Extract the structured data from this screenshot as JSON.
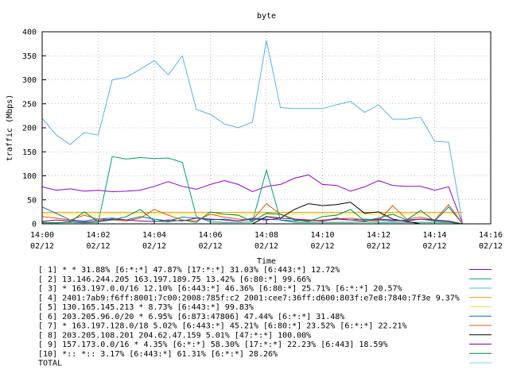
{
  "chart_data": {
    "type": "line",
    "title": "byte",
    "xlabel": "Time",
    "ylabel": "traffic (Mbps)",
    "ylim": [
      0,
      400
    ],
    "yticks": [
      0,
      50,
      100,
      150,
      200,
      250,
      300,
      350,
      400
    ],
    "xlim_minutes": [
      0,
      16
    ],
    "xticks": [
      {
        "time": "14:00",
        "date": "02/12"
      },
      {
        "time": "14:02",
        "date": "02/12"
      },
      {
        "time": "14:04",
        "date": "02/12"
      },
      {
        "time": "14:06",
        "date": "02/12"
      },
      {
        "time": "14:08",
        "date": "02/12"
      },
      {
        "time": "14:10",
        "date": "02/12"
      },
      {
        "time": "14:12",
        "date": "02/12"
      },
      {
        "time": "14:14",
        "date": "02/12"
      },
      {
        "time": "14:16",
        "date": "02/12"
      }
    ],
    "grid": true,
    "legend_position": "bottom",
    "series": [
      {
        "label": "[ 1] * * 31.88%  [6:*:*] 47.87% [17:*:*] 31.03% [6:443:*] 12.72%",
        "color": "#9400d3",
        "x": [
          0,
          0.5,
          1,
          1.5,
          2,
          2.5,
          3,
          3.5,
          4,
          4.5,
          5,
          5.5,
          6,
          6.5,
          7,
          7.5,
          8,
          8.5,
          9,
          9.5,
          10,
          10.5,
          11,
          11.5,
          12,
          12.5,
          13,
          13.5,
          14,
          14.5,
          15
        ],
        "values": [
          77,
          70,
          73,
          68,
          70,
          67,
          68,
          70,
          78,
          88,
          78,
          72,
          82,
          90,
          82,
          67,
          78,
          82,
          95,
          102,
          82,
          80,
          68,
          77,
          90,
          80,
          78,
          78,
          70,
          77,
          0
        ]
      },
      {
        "label": "[ 2] 13.146.244.205 163.197.189.75 13.42%  [6:80:*] 99.66%",
        "color": "#009e73",
        "x": [
          0,
          0.5,
          1,
          1.5,
          2,
          2.5,
          3,
          3.5,
          4,
          4.5,
          5,
          5.5,
          6,
          6.5,
          7,
          7.5,
          8,
          8.5,
          9,
          9.5,
          10,
          10.5,
          11,
          11.5,
          12,
          12.5,
          13,
          13.5,
          14,
          14.5,
          15
        ],
        "values": [
          2,
          2,
          3,
          2,
          3,
          140,
          135,
          138,
          136,
          137,
          128,
          15,
          4,
          3,
          3,
          4,
          112,
          8,
          3,
          3,
          3,
          3,
          3,
          4,
          3,
          3,
          3,
          3,
          3,
          3,
          0
        ]
      },
      {
        "label": "[ 3] * 163.197.0.0/16 12.10%  [6:443:*] 46.36% [6:80:*] 25.71% [6:*:*] 20.57%",
        "color": "#56b4e9",
        "x": [
          0,
          0.5,
          1,
          1.5,
          2,
          2.5,
          3,
          3.5,
          4,
          4.5,
          5,
          5.5,
          6,
          6.5,
          7,
          7.5,
          8,
          8.5,
          9,
          9.5,
          10,
          10.5,
          11,
          11.5,
          12,
          12.5,
          13,
          13.5,
          14,
          14.5,
          15
        ],
        "values": [
          220,
          185,
          165,
          190,
          185,
          300,
          305,
          322,
          340,
          310,
          350,
          238,
          228,
          208,
          200,
          212,
          382,
          242,
          240,
          240,
          240,
          248,
          255,
          232,
          248,
          218,
          218,
          222,
          172,
          170,
          0
        ]
      },
      {
        "label": "[ 4] 2401:7ab9:f6ff:8001:7c00:2008:785f:c2 2001:cee7:36ff:d600:803f:e7e8:7840:7f3e 9.37%",
        "color": "#e69f00",
        "x": [
          0,
          15
        ],
        "values": [
          24,
          24
        ]
      },
      {
        "label": "[ 5] 130.165.145.213 * 8.73%  [6:443:*] 99.83%",
        "color": "#f0e442",
        "x": [
          0,
          15
        ],
        "values": [
          20,
          20
        ]
      },
      {
        "label": "[ 6] 203.205.96.0/20 * 6.95%  [6:873:47806] 47.44% [6:*:*] 31.48%",
        "color": "#0072b2",
        "x": [
          0,
          0.5,
          1,
          1.5,
          2,
          2.5,
          3,
          3.5,
          4,
          4.5,
          5,
          5.5,
          6,
          6.5,
          7,
          7.5,
          8,
          8.5,
          9,
          9.5,
          10,
          10.5,
          11,
          11.5,
          12,
          12.5,
          13,
          13.5,
          14,
          14.5,
          15
        ],
        "values": [
          35,
          22,
          8,
          6,
          10,
          12,
          8,
          15,
          10,
          6,
          14,
          12,
          8,
          10,
          6,
          12,
          10,
          8,
          6,
          8,
          6,
          12,
          8,
          10,
          8,
          6,
          8,
          10,
          6,
          35,
          0
        ]
      },
      {
        "label": "[ 7] * 163.197.128.0/18 5.02%  [6:443:*] 45.21% [6:80:*] 23.52% [6:*:*] 22.21%",
        "color": "#d55e00",
        "x": [
          0,
          0.5,
          1,
          1.5,
          2,
          2.5,
          3,
          3.5,
          4,
          4.5,
          5,
          5.5,
          6,
          6.5,
          7,
          7.5,
          8,
          8.5,
          9,
          9.5,
          10,
          10.5,
          11,
          11.5,
          12,
          12.5,
          13,
          13.5,
          14,
          14.5,
          15
        ],
        "values": [
          15,
          12,
          8,
          18,
          10,
          8,
          6,
          12,
          30,
          18,
          8,
          6,
          20,
          14,
          10,
          8,
          42,
          20,
          10,
          6,
          8,
          10,
          12,
          8,
          6,
          38,
          10,
          14,
          8,
          40,
          0
        ]
      },
      {
        "label": "[ 8] 203.205.108.201 204.62.47.159 5.01%  [47:*:*] 100.00%",
        "color": "#000000",
        "x": [
          0,
          0.5,
          1,
          1.5,
          2,
          2.5,
          3,
          3.5,
          4,
          4.5,
          5,
          5.5,
          6,
          6.5,
          7,
          7.5,
          8,
          8.5,
          9,
          9.5,
          10,
          10.5,
          11,
          11.5,
          12,
          12.5,
          13,
          13.5,
          14,
          14.5,
          15
        ],
        "values": [
          0,
          0,
          0,
          0,
          0,
          0,
          0,
          0,
          0,
          0,
          0,
          0,
          0,
          0,
          0,
          0,
          15,
          12,
          30,
          42,
          38,
          40,
          45,
          22,
          25,
          10,
          5,
          0,
          0,
          0,
          0
        ]
      },
      {
        "label": "[ 9] 157.173.0.0/16 * 4.35%  [6:*:*] 58.30% [17:*:*] 22.23% [6:443] 18.59%",
        "color": "#8b008b",
        "x": [
          0,
          0.5,
          1,
          1.5,
          2,
          2.5,
          3,
          3.5,
          4,
          4.5,
          5,
          5.5,
          6,
          6.5,
          7,
          7.5,
          8,
          8.5,
          9,
          9.5,
          10,
          10.5,
          11,
          11.5,
          12,
          12.5,
          13,
          13.5,
          14,
          14.5,
          15
        ],
        "values": [
          5,
          8,
          6,
          4,
          6,
          10,
          8,
          6,
          5,
          8,
          6,
          12,
          10,
          8,
          6,
          10,
          8,
          12,
          10,
          8,
          6,
          10,
          8,
          6,
          10,
          8,
          6,
          10,
          8,
          6,
          0
        ]
      },
      {
        "label": "[10] *:: *:: 3.17%  [6:443:*] 61.31% [6:*:*] 28.26%",
        "color": "#008b45",
        "x": [
          0,
          0.5,
          1,
          1.5,
          2,
          2.5,
          3,
          3.5,
          4,
          4.5,
          5,
          5.5,
          6,
          6.5,
          7,
          7.5,
          8,
          8.5,
          9,
          9.5,
          10,
          10.5,
          11,
          11.5,
          12,
          12.5,
          13,
          13.5,
          14,
          14.5,
          15
        ],
        "values": [
          3,
          2,
          4,
          25,
          4,
          8,
          15,
          30,
          6,
          4,
          8,
          3,
          25,
          20,
          18,
          5,
          22,
          20,
          8,
          5,
          15,
          18,
          30,
          6,
          12,
          20,
          8,
          28,
          6,
          4,
          0
        ]
      },
      {
        "label": "TOTAL",
        "color": "#87ceeb",
        "x": [],
        "values": []
      }
    ]
  }
}
